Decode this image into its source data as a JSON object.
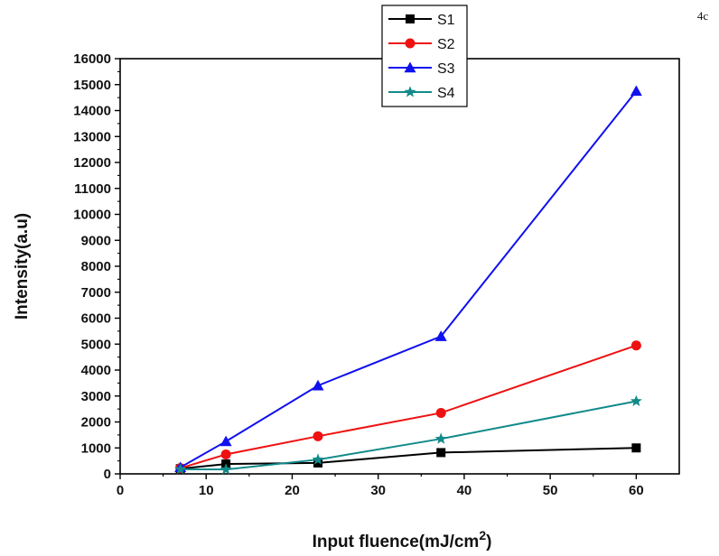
{
  "panel_label": "4c",
  "chart_data": {
    "type": "line",
    "xlabel": "Input fluence(mJ/cm",
    "xlabel_superscript": "2",
    "xlabel_suffix": ")",
    "ylabel": "Intensity(a.u)",
    "xlim": [
      0,
      65
    ],
    "ylim": [
      0,
      16000
    ],
    "xticks": [
      "0",
      "10",
      "20",
      "30",
      "40",
      "50",
      "60"
    ],
    "yticks": [
      "0",
      "1000",
      "2000",
      "3000",
      "4000",
      "5000",
      "6000",
      "7000",
      "8000",
      "9000",
      "10000",
      "11000",
      "12000",
      "13000",
      "14000",
      "15000",
      "16000"
    ],
    "x": [
      7,
      12.3,
      23,
      37.3,
      60
    ],
    "series": [
      {
        "name": "S1",
        "color": "#000000",
        "marker": "square",
        "values": [
          200,
          380,
          420,
          820,
          1000
        ]
      },
      {
        "name": "S2",
        "color": "#ee1111",
        "marker": "circle",
        "values": [
          220,
          750,
          1450,
          2350,
          4950
        ]
      },
      {
        "name": "S3",
        "color": "#1111ee",
        "marker": "triangle",
        "values": [
          250,
          1250,
          3400,
          5300,
          14750
        ]
      },
      {
        "name": "S4",
        "color": "#128a8a",
        "marker": "star",
        "values": [
          180,
          170,
          550,
          1350,
          2800
        ]
      }
    ],
    "legend_position": "top-center",
    "grid": false
  }
}
